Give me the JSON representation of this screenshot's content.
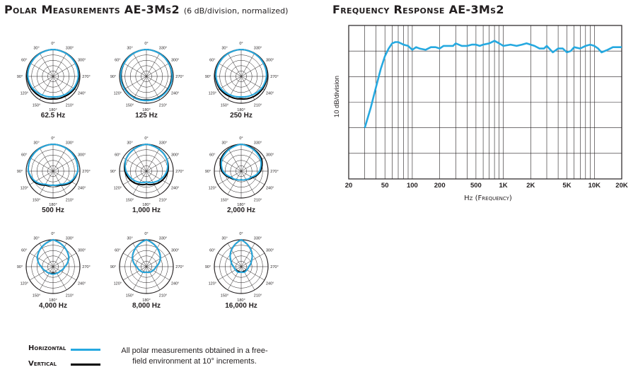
{
  "polar_title": "Polar Measurements AE-3Ms2",
  "polar_subtitle": "(6 dB/division, normalized)",
  "fr_title": "Frequency Response AE-3Ms2",
  "legend": {
    "horizontal_label": "Horizontal",
    "vertical_label": "Vertical",
    "horizontal_color": "#26a9e0",
    "vertical_color": "#000000"
  },
  "note_lines": [
    "All polar measurements obtained in a free-",
    "field environment at 10° increments."
  ],
  "chart_data": [
    {
      "type": "polar",
      "title": "Polar Measurements AE-3Ms2",
      "scale": "6 dB/division, normalized",
      "angle_labels": [
        "0°",
        "30°",
        "60°",
        "90°",
        "120°",
        "150°",
        "180°",
        "210°",
        "240°",
        "270°",
        "300°",
        "330°"
      ],
      "series_names": [
        "Horizontal",
        "Vertical"
      ],
      "plots": [
        {
          "frequency": "62.5 Hz",
          "horizontal": [
            [
              0,
              0
            ],
            [
              60,
              -1
            ],
            [
              90,
              -1.5
            ],
            [
              120,
              -3
            ],
            [
              150,
              -5
            ],
            [
              180,
              -6
            ],
            [
              210,
              -5
            ],
            [
              240,
              -3
            ],
            [
              270,
              -1.5
            ],
            [
              300,
              -1
            ],
            [
              360,
              0
            ]
          ],
          "vertical": [
            [
              0,
              0
            ],
            [
              60,
              -1
            ],
            [
              90,
              -1
            ],
            [
              120,
              -2
            ],
            [
              150,
              -3
            ],
            [
              180,
              -4
            ],
            [
              210,
              -3.5
            ],
            [
              240,
              -2
            ],
            [
              270,
              -1
            ],
            [
              300,
              -1
            ],
            [
              360,
              0
            ]
          ]
        },
        {
          "frequency": "125 Hz",
          "horizontal": [
            [
              0,
              0
            ],
            [
              60,
              -1
            ],
            [
              90,
              -1
            ],
            [
              120,
              -1.5
            ],
            [
              150,
              -2
            ],
            [
              180,
              -2.5
            ],
            [
              210,
              -2
            ],
            [
              240,
              -1.5
            ],
            [
              270,
              -1
            ],
            [
              300,
              -1
            ],
            [
              360,
              0
            ]
          ],
          "vertical": [
            [
              0,
              0
            ],
            [
              60,
              -1
            ],
            [
              90,
              -1.5
            ],
            [
              120,
              -2
            ],
            [
              150,
              -2.5
            ],
            [
              180,
              -3
            ],
            [
              210,
              -2.5
            ],
            [
              240,
              -2
            ],
            [
              270,
              -1.5
            ],
            [
              300,
              -1
            ],
            [
              360,
              0
            ]
          ]
        },
        {
          "frequency": "250 Hz",
          "horizontal": [
            [
              0,
              0
            ],
            [
              60,
              -1
            ],
            [
              90,
              -1.5
            ],
            [
              120,
              -3
            ],
            [
              150,
              -5
            ],
            [
              180,
              -6
            ],
            [
              210,
              -5
            ],
            [
              240,
              -3
            ],
            [
              270,
              -1.5
            ],
            [
              300,
              -1
            ],
            [
              360,
              0
            ]
          ],
          "vertical": [
            [
              0,
              0
            ],
            [
              60,
              -1
            ],
            [
              90,
              -1
            ],
            [
              120,
              -2
            ],
            [
              150,
              -3.5
            ],
            [
              180,
              -4
            ],
            [
              210,
              -3
            ],
            [
              240,
              -2
            ],
            [
              270,
              -1
            ],
            [
              300,
              -1
            ],
            [
              360,
              0
            ]
          ]
        },
        {
          "frequency": "500 Hz",
          "horizontal": [
            [
              0,
              0
            ],
            [
              60,
              -1
            ],
            [
              90,
              -2
            ],
            [
              120,
              -6
            ],
            [
              150,
              -11
            ],
            [
              180,
              -12
            ],
            [
              210,
              -11
            ],
            [
              240,
              -6
            ],
            [
              270,
              -2
            ],
            [
              300,
              -1
            ],
            [
              360,
              0
            ]
          ],
          "vertical": [
            [
              0,
              0
            ],
            [
              60,
              -1
            ],
            [
              90,
              -2
            ],
            [
              120,
              -5
            ],
            [
              150,
              -10
            ],
            [
              180,
              -12
            ],
            [
              210,
              -10
            ],
            [
              240,
              -5
            ],
            [
              270,
              -2
            ],
            [
              300,
              -1
            ],
            [
              360,
              0
            ]
          ]
        },
        {
          "frequency": "1,000 Hz",
          "horizontal": [
            [
              0,
              0
            ],
            [
              60,
              -3
            ],
            [
              90,
              -6
            ],
            [
              120,
              -10
            ],
            [
              150,
              -13
            ],
            [
              180,
              -15
            ],
            [
              210,
              -13
            ],
            [
              240,
              -10
            ],
            [
              270,
              -6
            ],
            [
              300,
              -3
            ],
            [
              360,
              0
            ]
          ],
          "vertical": [
            [
              0,
              0
            ],
            [
              60,
              -3
            ],
            [
              90,
              -5
            ],
            [
              120,
              -8
            ],
            [
              150,
              -11
            ],
            [
              180,
              -13
            ],
            [
              210,
              -11
            ],
            [
              240,
              -8
            ],
            [
              270,
              -5
            ],
            [
              300,
              -3
            ],
            [
              360,
              0
            ]
          ]
        },
        {
          "frequency": "2,000 Hz",
          "horizontal": [
            [
              0,
              0
            ],
            [
              60,
              -4
            ],
            [
              90,
              -8
            ],
            [
              120,
              -14
            ],
            [
              150,
              -16
            ],
            [
              180,
              -17
            ],
            [
              210,
              -16
            ],
            [
              240,
              -14
            ],
            [
              270,
              -8
            ],
            [
              300,
              -4
            ],
            [
              360,
              0
            ]
          ],
          "vertical": [
            [
              0,
              0
            ],
            [
              60,
              -3
            ],
            [
              90,
              -7
            ],
            [
              120,
              -13
            ],
            [
              150,
              -16
            ],
            [
              180,
              -17
            ],
            [
              210,
              -16
            ],
            [
              240,
              -13
            ],
            [
              270,
              -7
            ],
            [
              300,
              -3
            ],
            [
              360,
              0
            ]
          ]
        },
        {
          "frequency": "4,000 Hz",
          "horizontal": [
            [
              0,
              0
            ],
            [
              60,
              -8
            ],
            [
              90,
              -14
            ],
            [
              120,
              -17
            ],
            [
              150,
              -18
            ],
            [
              180,
              -18
            ],
            [
              210,
              -18
            ],
            [
              240,
              -17
            ],
            [
              270,
              -14
            ],
            [
              300,
              -8
            ],
            [
              360,
              0
            ]
          ],
          "vertical": [
            [
              0,
              0
            ],
            [
              60,
              -8
            ],
            [
              90,
              -14
            ],
            [
              120,
              -17
            ],
            [
              150,
              -18
            ],
            [
              180,
              -19
            ],
            [
              210,
              -18
            ],
            [
              240,
              -17
            ],
            [
              270,
              -14
            ],
            [
              300,
              -8
            ],
            [
              360,
              0
            ]
          ]
        },
        {
          "frequency": "8,000 Hz",
          "horizontal": [
            [
              0,
              0
            ],
            [
              60,
              -10
            ],
            [
              90,
              -16
            ],
            [
              120,
              -18
            ],
            [
              150,
              -19
            ],
            [
              180,
              -20
            ],
            [
              210,
              -19
            ],
            [
              240,
              -18
            ],
            [
              270,
              -16
            ],
            [
              300,
              -10
            ],
            [
              360,
              0
            ]
          ],
          "vertical": [
            [
              0,
              0
            ],
            [
              60,
              -10
            ],
            [
              90,
              -16
            ],
            [
              120,
              -18
            ],
            [
              150,
              -19
            ],
            [
              180,
              -20
            ],
            [
              210,
              -19
            ],
            [
              240,
              -18
            ],
            [
              270,
              -16
            ],
            [
              300,
              -10
            ],
            [
              360,
              0
            ]
          ]
        },
        {
          "frequency": "16,000 Hz",
          "horizontal": [
            [
              0,
              0
            ],
            [
              60,
              -14
            ],
            [
              90,
              -18
            ],
            [
              120,
              -19
            ],
            [
              150,
              -19
            ],
            [
              180,
              -20
            ],
            [
              210,
              -19
            ],
            [
              240,
              -19
            ],
            [
              270,
              -18
            ],
            [
              300,
              -14
            ],
            [
              360,
              0
            ]
          ],
          "vertical": [
            [
              0,
              0
            ],
            [
              60,
              -14
            ],
            [
              90,
              -18
            ],
            [
              120,
              -19
            ],
            [
              150,
              -20
            ],
            [
              180,
              -20
            ],
            [
              210,
              -20
            ],
            [
              240,
              -19
            ],
            [
              270,
              -18
            ],
            [
              300,
              -14
            ],
            [
              360,
              0
            ]
          ]
        }
      ]
    },
    {
      "type": "line",
      "title": "Frequency Response AE-3Ms2",
      "xlabel": "Hz (Frequency)",
      "ylabel": "10 dB/division",
      "x_scale": "log",
      "xlim": [
        20,
        20000
      ],
      "ylim": [
        -50,
        10
      ],
      "x_tick_values": [
        20,
        50,
        100,
        200,
        500,
        1000,
        2000,
        5000,
        10000,
        20000
      ],
      "x_tick_labels": [
        "20",
        "50",
        "100",
        "200",
        "500",
        "1K",
        "2K",
        "5K",
        "10K",
        "20K"
      ],
      "grid": true,
      "series": [
        {
          "color": "#26a9e0",
          "x": [
            30,
            35,
            40,
            45,
            50,
            55,
            60,
            65,
            70,
            80,
            90,
            100,
            110,
            120,
            140,
            160,
            180,
            200,
            220,
            250,
            280,
            300,
            350,
            400,
            450,
            500,
            550,
            600,
            700,
            800,
            900,
            1000,
            1200,
            1400,
            1600,
            1800,
            2000,
            2200,
            2500,
            2800,
            3000,
            3500,
            4000,
            4500,
            5000,
            5500,
            6000,
            7000,
            8000,
            9000,
            10000,
            11000,
            12000,
            14000,
            16000,
            18000,
            20000
          ],
          "y": [
            -30,
            -22,
            -14,
            -7,
            -2,
            1,
            3,
            3.5,
            3.5,
            2.5,
            2,
            0.5,
            1.5,
            1,
            0.5,
            1.5,
            1.5,
            1,
            2,
            2,
            2,
            3,
            2,
            2,
            2.5,
            2.5,
            2,
            2.5,
            3,
            4,
            3,
            2,
            2.5,
            2,
            2.5,
            3,
            2.5,
            2,
            1,
            1,
            2,
            -0.5,
            1,
            1,
            -0.5,
            0,
            1.5,
            1,
            2,
            2.5,
            2,
            1,
            -0.5,
            0.5,
            1.5,
            1.5,
            1.5
          ]
        }
      ]
    }
  ]
}
